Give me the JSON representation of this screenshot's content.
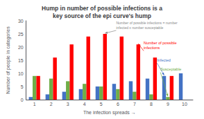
{
  "chart_data": {
    "type": "bar",
    "title": "Hump in number of possible infections is a\nkey source of the epi curve's hump",
    "xlabel": "The infection spreads →",
    "ylabel": "Number of people in categories",
    "categories": [
      1,
      2,
      3,
      4,
      5,
      6,
      7,
      8,
      9,
      10
    ],
    "series": [
      {
        "color": "#4472c4",
        "values": [
          1,
          2,
          3,
          4,
          5,
          6,
          7,
          8,
          9,
          10
        ]
      },
      {
        "color": "#70ad47",
        "values": [
          9,
          8,
          7,
          6,
          5,
          4,
          3,
          2,
          1,
          0
        ]
      },
      {
        "color": "#ff0000",
        "values": [
          9,
          16,
          21,
          24,
          25,
          24,
          21,
          16,
          9,
          0
        ]
      }
    ],
    "ylim": [
      0,
      30
    ],
    "yticks": [
      0,
      5,
      10,
      15,
      20,
      25,
      30
    ],
    "grid": false,
    "annotations": [
      {
        "text": "Number of possible infections = number\ninfected x number susceptable",
        "color": "#888888",
        "category": 5,
        "series": 2
      },
      {
        "text": "Number of possible\ninfections",
        "color": "#ff0000",
        "category": 7,
        "series": 2
      },
      {
        "text": "Infected",
        "color": "#4472c4",
        "category": 9,
        "series": 0
      },
      {
        "text": "Susceptable",
        "color": "#70ad47",
        "category": 9,
        "series": 1
      }
    ]
  }
}
